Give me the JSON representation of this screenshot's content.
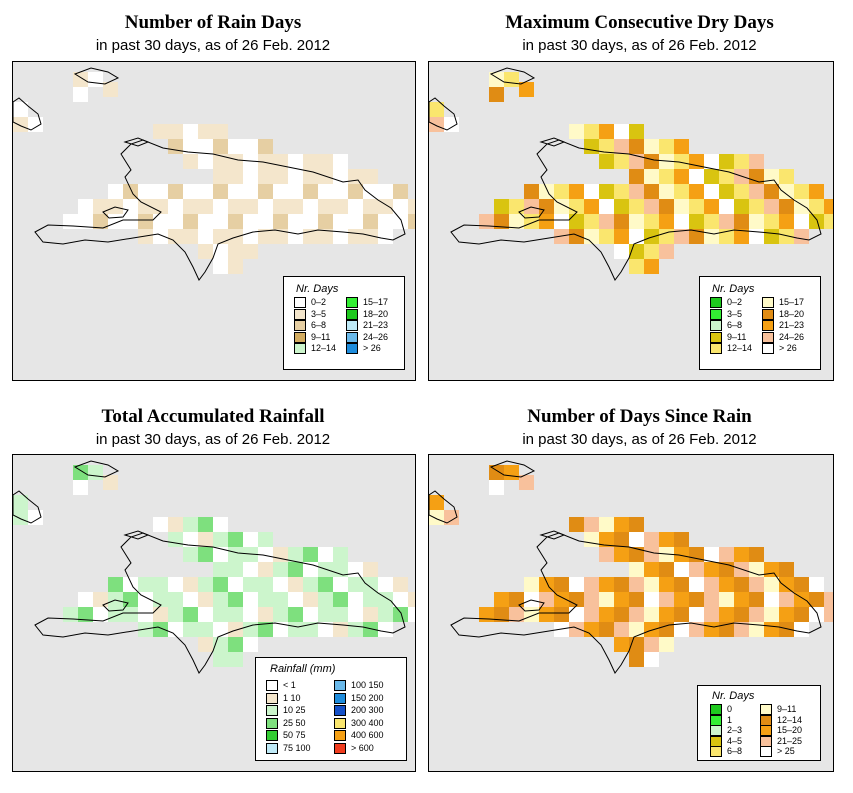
{
  "panels": {
    "rain_days": {
      "title": "Number of Rain Days",
      "subtitle": "in past 30 days, as of  26 Feb. 2012",
      "legend": {
        "title": "Nr. Days",
        "left": [
          {
            "label": "0–2",
            "color": "#ffffff"
          },
          {
            "label": "3–5",
            "color": "#f4e6cc"
          },
          {
            "label": "6–8",
            "color": "#e6cfa3"
          },
          {
            "label": "9–11",
            "color": "#d2ab5f"
          },
          {
            "label": "12–14",
            "color": "#ccf5cc"
          }
        ],
        "right": [
          {
            "label": "15–17",
            "color": "#33ee33"
          },
          {
            "label": "18–20",
            "color": "#1ec81e"
          },
          {
            "label": "21–23",
            "color": "#bfeaf7"
          },
          {
            "label": "24–26",
            "color": "#6ab9ea"
          },
          {
            "label": "> 26",
            "color": "#1e8cdc"
          }
        ]
      }
    },
    "dry_days": {
      "title": "Maximum Consecutive Dry Days",
      "subtitle": "in past 30 days, as of  26 Feb. 2012",
      "legend": {
        "title": "Nr. Days",
        "left": [
          {
            "label": "0–2",
            "color": "#1ec81e"
          },
          {
            "label": "3–5",
            "color": "#33ee33"
          },
          {
            "label": "6–8",
            "color": "#ccf5cc"
          },
          {
            "label": "9–11",
            "color": "#d9c410"
          },
          {
            "label": "12–14",
            "color": "#fae66e"
          }
        ],
        "right": [
          {
            "label": "15–17",
            "color": "#fffac8"
          },
          {
            "label": "18–20",
            "color": "#e08c14"
          },
          {
            "label": "21–23",
            "color": "#f5a014"
          },
          {
            "label": "24–26",
            "color": "#f8c19c"
          },
          {
            "label": "> 26",
            "color": "#ffffff"
          }
        ]
      }
    },
    "rainfall": {
      "title": "Total Accumulated Rainfall",
      "subtitle": "in past 30 days, as of  26 Feb. 2012",
      "legend": {
        "title": "Rainfall (mm)",
        "left": [
          {
            "label": "< 1",
            "color": "#ffffff"
          },
          {
            "label": "1     10",
            "color": "#f4e6cc"
          },
          {
            "label": "10     25",
            "color": "#ccf5cc"
          },
          {
            "label": "25     50",
            "color": "#7ee07e"
          },
          {
            "label": "50     75",
            "color": "#33cc33"
          },
          {
            "label": "75    100",
            "color": "#bfeaf7"
          }
        ],
        "right": [
          {
            "label": "100   150",
            "color": "#6ab9ea"
          },
          {
            "label": "150   200",
            "color": "#1e8cdc"
          },
          {
            "label": "200   300",
            "color": "#1450c8"
          },
          {
            "label": "300   400",
            "color": "#fae66e"
          },
          {
            "label": "400   600",
            "color": "#f5a014"
          },
          {
            "label": "> 600",
            "color": "#f03c1e"
          }
        ]
      }
    },
    "since_rain": {
      "title": "Number of Days Since Rain",
      "subtitle": "in past 30 days, as of  26 Feb. 2012",
      "legend": {
        "title": "Nr. Days",
        "left": [
          {
            "label": "0",
            "color": "#1ec81e"
          },
          {
            "label": "1",
            "color": "#33ee33"
          },
          {
            "label": "2–3",
            "color": "#ccf5cc"
          },
          {
            "label": "4–5",
            "color": "#d9c410"
          },
          {
            "label": "6–8",
            "color": "#fae66e"
          }
        ],
        "right": [
          {
            "label": "9–11",
            "color": "#fffac8"
          },
          {
            "label": "12–14",
            "color": "#e08c14"
          },
          {
            "label": "15–20",
            "color": "#f5a014"
          },
          {
            "label": "21–25",
            "color": "#f8c19c"
          },
          {
            "label": "> 25",
            "color": "#ffffff"
          }
        ]
      }
    }
  }
}
